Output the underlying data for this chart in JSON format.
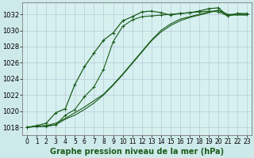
{
  "bg_color": "#cee9e9",
  "plot_bg_color": "#d6f0f0",
  "grid_color": "#b8c8d8",
  "line_color": "#1a5c1a",
  "xlabel": "Graphe pression niveau de la mer (hPa)",
  "xlabel_fontsize": 7,
  "tick_fontsize": 5.5,
  "ytick_fontsize": 6,
  "xlim": [
    -0.5,
    23.5
  ],
  "ylim": [
    1017.0,
    1033.5
  ],
  "yticks": [
    1018,
    1020,
    1022,
    1024,
    1026,
    1028,
    1030,
    1032
  ],
  "xticks": [
    0,
    1,
    2,
    3,
    4,
    5,
    6,
    7,
    8,
    9,
    10,
    11,
    12,
    13,
    14,
    15,
    16,
    17,
    18,
    19,
    20,
    21,
    22,
    23
  ],
  "series1_x": [
    0,
    1,
    2,
    3,
    4,
    5,
    6,
    7,
    8,
    9,
    10,
    11,
    12,
    13,
    14,
    15,
    16,
    17,
    18,
    19,
    20,
    21,
    22,
    23
  ],
  "series1_y": [
    1018.0,
    1018.1,
    1018.1,
    1018.3,
    1019.5,
    1020.2,
    1021.8,
    1023.0,
    1025.2,
    1028.6,
    1030.5,
    1031.3,
    1031.7,
    1031.8,
    1031.9,
    1032.0,
    1032.1,
    1032.2,
    1032.3,
    1032.4,
    1032.3,
    1031.8,
    1032.1,
    1032.1
  ],
  "series2_x": [
    0,
    1,
    2,
    3,
    4,
    5,
    6,
    7,
    8,
    9,
    10,
    11,
    12,
    13,
    14,
    15,
    16,
    17,
    18,
    19,
    20,
    21,
    22,
    23
  ],
  "series2_y": [
    1018.0,
    1018.1,
    1018.2,
    1018.3,
    1019.0,
    1019.5,
    1020.2,
    1021.0,
    1022.0,
    1023.2,
    1024.5,
    1025.9,
    1027.3,
    1028.7,
    1029.8,
    1030.6,
    1031.2,
    1031.6,
    1031.9,
    1032.2,
    1032.5,
    1031.9,
    1031.9,
    1031.9
  ],
  "series3_x": [
    0,
    1,
    2,
    3,
    4,
    5,
    6,
    7,
    8,
    9,
    10,
    11,
    12,
    13,
    14,
    15,
    16,
    17,
    18,
    19,
    20,
    21,
    22,
    23
  ],
  "series3_y": [
    1018.0,
    1018.1,
    1018.2,
    1018.5,
    1019.1,
    1019.8,
    1020.5,
    1021.3,
    1022.1,
    1023.3,
    1024.6,
    1026.0,
    1027.4,
    1028.8,
    1030.0,
    1030.8,
    1031.4,
    1031.7,
    1032.0,
    1032.3,
    1032.5,
    1032.0,
    1032.0,
    1032.0
  ],
  "series4_x": [
    0,
    1,
    2,
    3,
    4,
    5,
    6,
    7,
    8,
    9,
    10,
    11,
    12,
    13,
    14,
    15,
    16,
    17,
    18,
    19,
    20,
    21,
    22,
    23
  ],
  "series4_y": [
    1018.0,
    1018.2,
    1018.5,
    1019.8,
    1020.3,
    1023.3,
    1025.5,
    1027.2,
    1028.8,
    1029.7,
    1031.2,
    1031.7,
    1032.3,
    1032.4,
    1032.2,
    1031.9,
    1032.1,
    1032.2,
    1032.4,
    1032.7,
    1032.8,
    1031.8,
    1032.1,
    1032.0
  ]
}
